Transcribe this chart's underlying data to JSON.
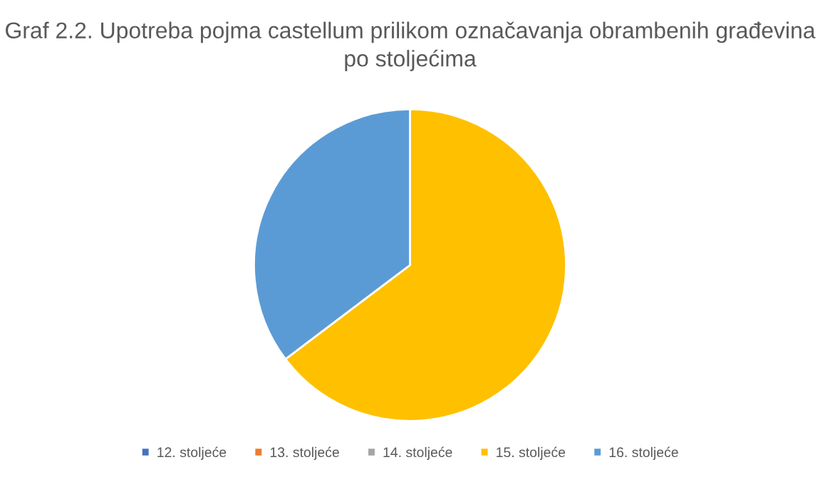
{
  "chart_data": {
    "type": "pie",
    "title": "Graf 2.2. Upotreba pojma castellum prilikom označavanja obrambenih građevina po stoljećima",
    "categories": [
      "12. stoljeće",
      "13. stoljeće",
      "14. stoljeće",
      "15. stoljeće",
      "16. stoljeće"
    ],
    "values": [
      0,
      0,
      0,
      64.7,
      35.3
    ],
    "colors": [
      "#4472c4",
      "#ed7d31",
      "#a5a5a5",
      "#ffc000",
      "#5b9bd5"
    ],
    "legend": "bottom"
  }
}
